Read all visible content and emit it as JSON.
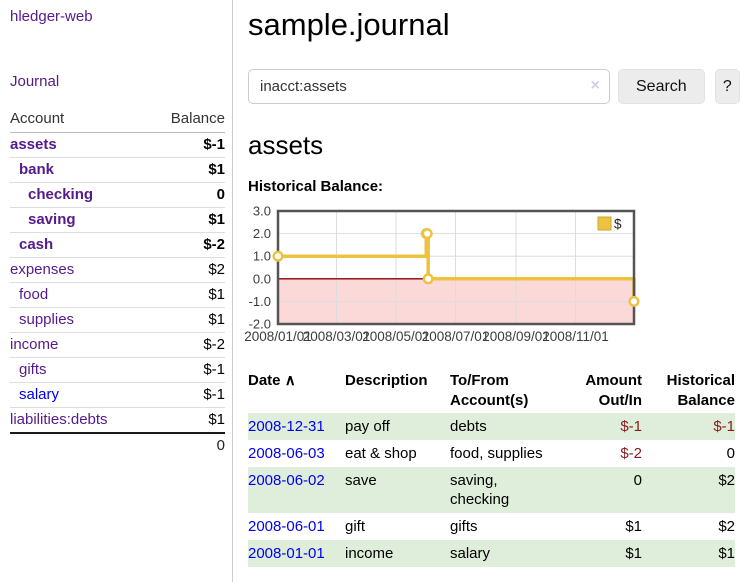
{
  "sidebar": {
    "brand": "hledger-web",
    "journal_link": "Journal",
    "accounts": {
      "headers": {
        "account": "Account",
        "balance": "Balance"
      },
      "rows": [
        {
          "name": "assets",
          "depth": 0,
          "bold": true,
          "color": "purple",
          "balance": "$-1",
          "balance_class": "neg-bold"
        },
        {
          "name": "bank",
          "depth": 1,
          "bold": true,
          "color": "purple",
          "balance": "$1",
          "balance_class": ""
        },
        {
          "name": "checking",
          "depth": 2,
          "bold": true,
          "color": "purple",
          "balance": "0",
          "balance_class": ""
        },
        {
          "name": "saving",
          "depth": 2,
          "bold": true,
          "color": "purple",
          "balance": "$1",
          "balance_class": ""
        },
        {
          "name": "cash",
          "depth": 1,
          "bold": true,
          "color": "purple",
          "balance": "$-2",
          "balance_class": "neg-bold"
        },
        {
          "name": "expenses",
          "depth": 0,
          "bold": false,
          "color": "purple",
          "balance": "$2",
          "balance_class": ""
        },
        {
          "name": "food",
          "depth": 1,
          "bold": false,
          "color": "purple",
          "balance": "$1",
          "balance_class": ""
        },
        {
          "name": "supplies",
          "depth": 1,
          "bold": false,
          "color": "purple",
          "balance": "$1",
          "balance_class": ""
        },
        {
          "name": "income",
          "depth": 0,
          "bold": false,
          "color": "purple",
          "balance": "$-2",
          "balance_class": "neg-soft"
        },
        {
          "name": "gifts",
          "depth": 1,
          "bold": false,
          "color": "purple",
          "balance": "$-1",
          "balance_class": "neg-soft"
        },
        {
          "name": "salary",
          "depth": 1,
          "bold": false,
          "color": "blue",
          "balance": "$-1",
          "balance_class": "neg-soft"
        },
        {
          "name": "liabilities:debts",
          "depth": 0,
          "bold": false,
          "color": "purple",
          "balance": "$1",
          "balance_class": ""
        }
      ],
      "total": "0"
    }
  },
  "main": {
    "title": "sample.journal",
    "search": {
      "value": "inacct:assets",
      "clear_icon": "×",
      "button": "Search",
      "help": "?"
    },
    "account_heading": "assets",
    "chart_label": "Historical Balance:"
  },
  "chart_data": {
    "type": "line",
    "step": true,
    "title": "Historical Balance",
    "legend": {
      "label": "$",
      "color": "#edc240",
      "position": "top-right"
    },
    "ylim": [
      -2,
      3
    ],
    "y_ticks": [
      "3.0",
      "2.0",
      "1.0",
      "0.0",
      "-1.0",
      "-2.0"
    ],
    "y_tick_values": [
      3,
      2,
      1,
      0,
      -1,
      -2
    ],
    "x_tick_labels": [
      "2008/01/01",
      "2008/03/01",
      "2008/05/01",
      "2008/07/01",
      "2008/09/01",
      "2008/11/01"
    ],
    "x_tick_days": [
      0,
      60,
      121,
      182,
      244,
      305
    ],
    "x_range_days": [
      0,
      365
    ],
    "series": [
      {
        "name": "$",
        "color": "#edc240",
        "dates": [
          "2008-01-01",
          "2008-06-01",
          "2008-06-02",
          "2008-06-03",
          "2008-12-31"
        ],
        "days": [
          0,
          152,
          153,
          154,
          365
        ],
        "values": [
          1,
          2,
          2,
          0,
          -1
        ]
      }
    ],
    "grid": true,
    "grid_color": "#dddddd",
    "border_color": "#545454",
    "zero_line_color": "#8b0000",
    "negative_region_fill": "#fbd9d9",
    "tick_label_color": "#3c3c3c"
  },
  "register": {
    "headers": {
      "date": "Date",
      "sort_caret": "∧",
      "description": "Description",
      "accounts": "To/From Account(s)",
      "amount": "Amount Out/In",
      "balance": "Historical Balance"
    },
    "rows": [
      {
        "date": "2008-12-31",
        "description": "pay off",
        "accounts": "debts",
        "amount": "$-1",
        "amount_neg": true,
        "balance": "$-1",
        "balance_neg": true,
        "shaded": true
      },
      {
        "date": "2008-06-03",
        "description": "eat & shop",
        "accounts": "food, supplies",
        "amount": "$-2",
        "amount_neg": true,
        "balance": "0",
        "balance_neg": false,
        "shaded": false
      },
      {
        "date": "2008-06-02",
        "description": "save",
        "accounts": "saving, checking",
        "amount": "0",
        "amount_neg": false,
        "balance": "$2",
        "balance_neg": false,
        "shaded": true
      },
      {
        "date": "2008-06-01",
        "description": "gift",
        "accounts": "gifts",
        "amount": "$1",
        "amount_neg": false,
        "balance": "$2",
        "balance_neg": false,
        "shaded": false
      },
      {
        "date": "2008-01-01",
        "description": "income",
        "accounts": "salary",
        "amount": "$1",
        "amount_neg": false,
        "balance": "$1",
        "balance_neg": false,
        "shaded": true
      }
    ]
  }
}
